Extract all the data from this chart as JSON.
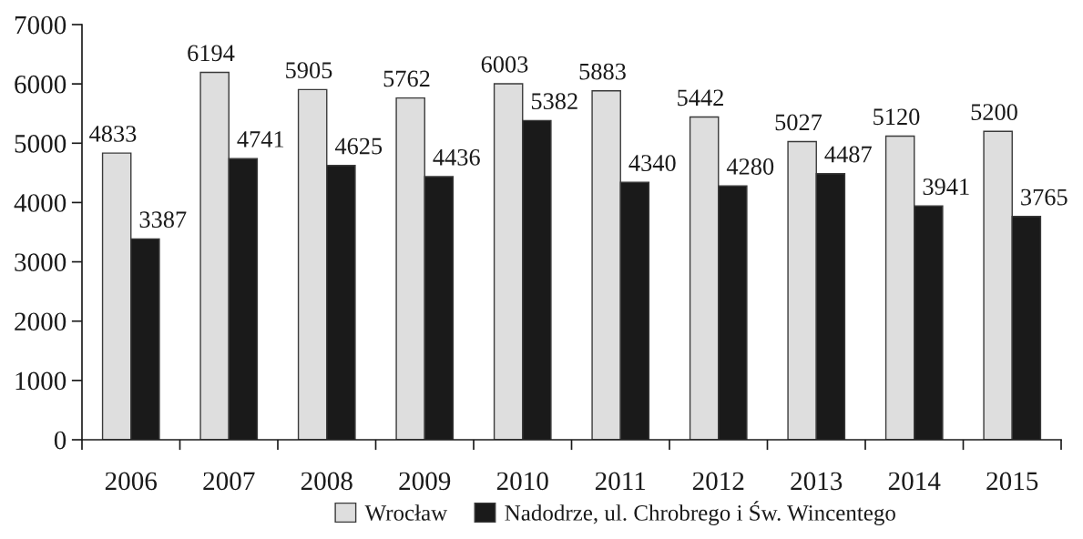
{
  "chart_data": {
    "type": "bar",
    "categories": [
      "2006",
      "2007",
      "2008",
      "2009",
      "2010",
      "2011",
      "2012",
      "2013",
      "2014",
      "2015"
    ],
    "series": [
      {
        "name": "Wrocław",
        "color": "#dedede",
        "values": [
          4833,
          6194,
          5905,
          5762,
          6003,
          5883,
          5442,
          5027,
          5120,
          5200
        ]
      },
      {
        "name": "Nadodrze, ul. Chrobrego i Św. Wincentego",
        "color": "#1a1a1a",
        "values": [
          3387,
          4741,
          4625,
          4436,
          5382,
          4340,
          4280,
          4487,
          3941,
          3765
        ]
      }
    ],
    "ylim": [
      0,
      7000
    ],
    "yticks": [
      0,
      1000,
      2000,
      3000,
      4000,
      5000,
      6000,
      7000
    ],
    "data_labels": true,
    "legend": "bottom",
    "grid": false
  }
}
